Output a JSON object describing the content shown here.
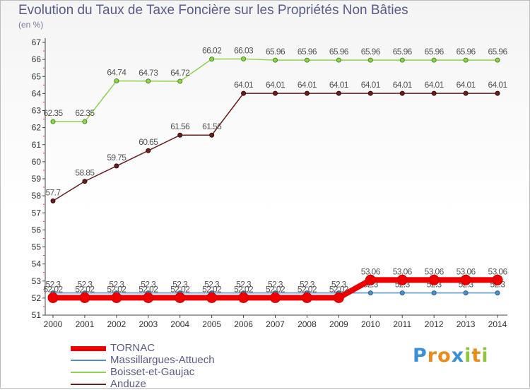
{
  "header": {
    "title": "Evolution du Taux de Taxe Foncière sur les Propriétés Non Bâties",
    "unit": "(en %)"
  },
  "brand": {
    "letters": [
      "P",
      "r",
      "o",
      "x",
      "i",
      "t",
      "i"
    ],
    "colors": [
      "#3a8fd6",
      "#e98a1a",
      "#e98a1a",
      "#3a8fd6",
      "#8dc63f",
      "#e98a1a",
      "#8dc63f"
    ]
  },
  "chart_data": {
    "type": "line",
    "title": "Evolution du Taux de Taxe Foncière sur les Propriétés Non Bâties",
    "ylabel": "(en %)",
    "xlabel": "",
    "grid": false,
    "ylim": [
      51,
      67
    ],
    "yticks": [
      "51",
      "52",
      "53",
      "54",
      "55",
      "56",
      "57",
      "58",
      "59",
      "60",
      "61",
      "62",
      "63",
      "64",
      "65",
      "66",
      "67"
    ],
    "categories": [
      "2000",
      "2001",
      "2002",
      "2003",
      "2004",
      "2005",
      "2006",
      "2007",
      "2008",
      "2009",
      "2010",
      "2011",
      "2012",
      "2013",
      "2014"
    ],
    "series": [
      {
        "name": "Anduze",
        "color": "#6b1e1e",
        "values": [
          57.7,
          58.85,
          59.75,
          60.65,
          61.56,
          61.56,
          64.01,
          64.01,
          64.01,
          64.01,
          64.01,
          64.01,
          64.01,
          64.01,
          64.01
        ],
        "labels": [
          "57.7",
          "58.85",
          "59.75",
          "60.65",
          "61.56",
          "61.56",
          "64.01",
          "64.01",
          "64.01",
          "64.01",
          "64.01",
          "64.01",
          "64.01",
          "64.01",
          "64.01"
        ]
      },
      {
        "name": "Boisset-et-Gaujac",
        "color": "#8fd44f",
        "values": [
          62.35,
          62.35,
          64.74,
          64.73,
          64.72,
          66.02,
          66.03,
          65.96,
          65.96,
          65.96,
          65.96,
          65.96,
          65.96,
          65.96,
          65.96
        ],
        "labels": [
          "62.35",
          "62.35",
          "64.74",
          "64.73",
          "64.72",
          "66.02",
          "66.03",
          "65.96",
          "65.96",
          "65.96",
          "65.96",
          "65.96",
          "65.96",
          "65.96",
          "65.96"
        ]
      },
      {
        "name": "Massillargues-Attuech",
        "color": "#4f8fc7",
        "values": [
          52.3,
          52.3,
          52.3,
          52.3,
          52.3,
          52.3,
          52.3,
          52.3,
          52.3,
          52.3,
          52.3,
          52.3,
          52.3,
          52.3,
          52.3
        ],
        "labels": [
          "52.3",
          "52.3",
          "52.3",
          "52.3",
          "52.3",
          "52.3",
          "52.3",
          "52.3",
          "52.3",
          "52.3",
          "52.3",
          "52.3",
          "52.3",
          "52.3",
          "52.3"
        ]
      },
      {
        "name": "TORNAC",
        "color": "#ee0000",
        "values": [
          52.02,
          52.02,
          52.02,
          52.02,
          52.02,
          52.02,
          52.02,
          52.02,
          52.02,
          52.02,
          53.06,
          53.06,
          53.06,
          53.06,
          53.06
        ],
        "labels": [
          "52.02",
          "52.02",
          "52.02",
          "52.02",
          "52.02",
          "52.02",
          "52.02",
          "52.02",
          "52.02",
          "52.02",
          "53.06",
          "53.06",
          "53.06",
          "53.06",
          "53.06"
        ]
      }
    ],
    "legend": [
      "TORNAC",
      "Massillargues-Attuech",
      "Boisset-et-Gaujac",
      "Anduze"
    ]
  }
}
